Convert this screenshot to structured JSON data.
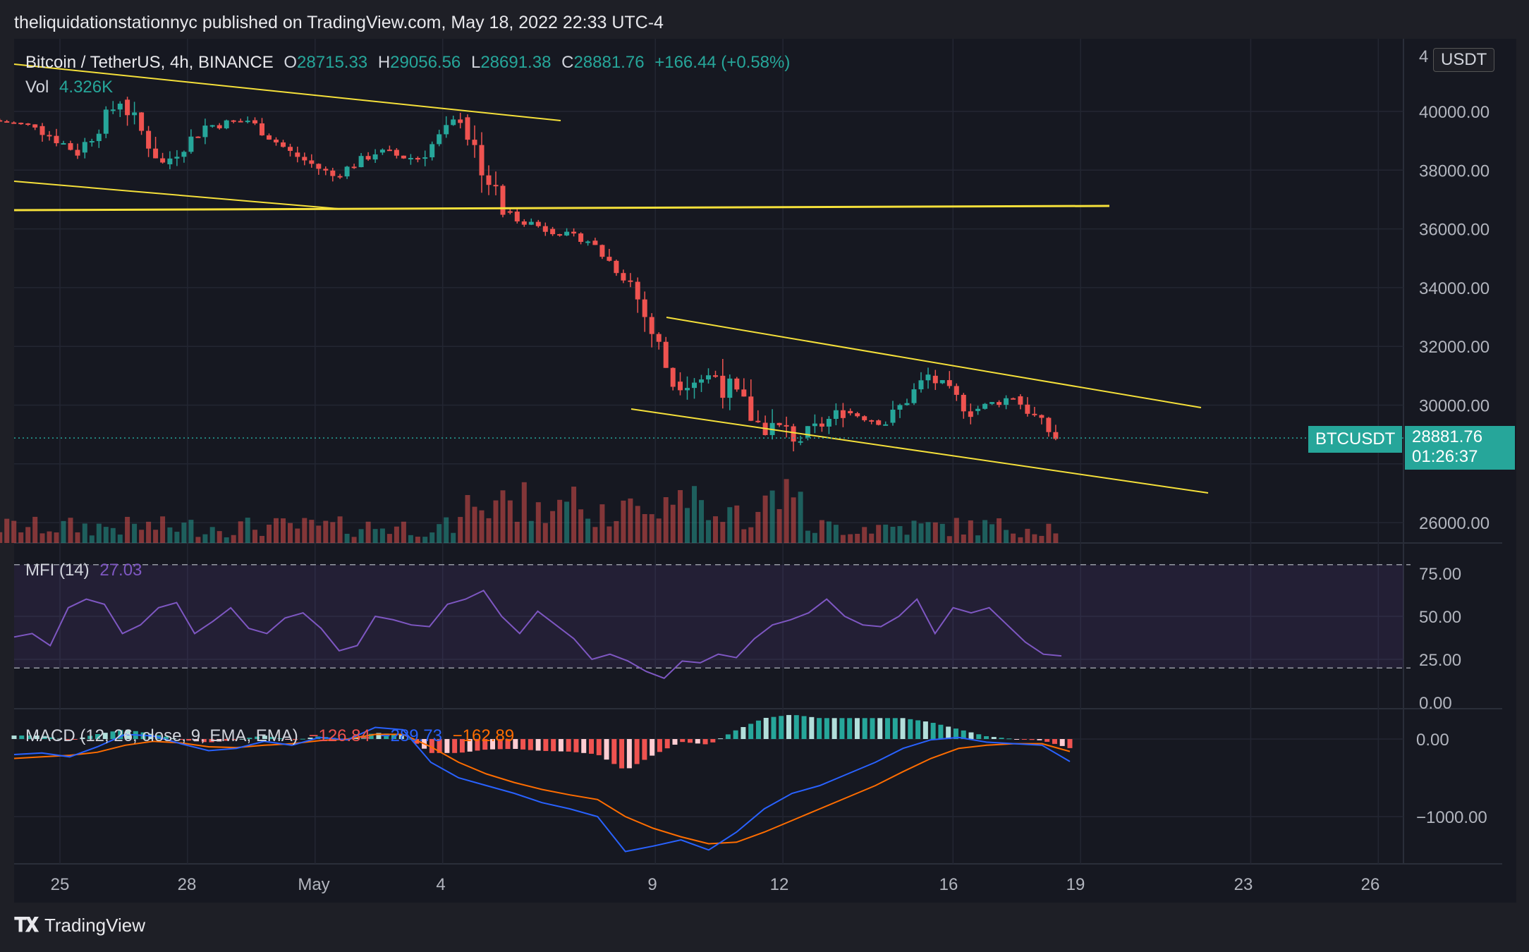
{
  "header": {
    "text": "theliquidationstationnyc published on TradingView.com, May 18, 2022 22:33 UTC-4"
  },
  "symbol": {
    "name": "Bitcoin / TetherUS, 4h, BINANCE",
    "o_label": "O",
    "o_value": "28715.33",
    "h_label": "H",
    "h_value": "29056.56",
    "l_label": "L",
    "l_value": "28691.38",
    "c_label": "C",
    "c_value": "28881.76",
    "change": "+166.44 (+0.58%)"
  },
  "volume": {
    "label": "Vol",
    "value": "4.326K"
  },
  "currency_badge": "USDT",
  "price_tag": {
    "symbol": "BTCUSDT",
    "price": "28881.76",
    "countdown": "01:26:37"
  },
  "mfi": {
    "label": "MFI (14)",
    "value": "27.03"
  },
  "macd": {
    "label": "MACD (12, 26, close, 9, EMA, EMA)",
    "hist": "−126.84",
    "macd": "−289.73",
    "signal": "−162.89"
  },
  "price_axis_labels": [
    "40000.00",
    "38000.00",
    "36000.00",
    "34000.00",
    "32000.00",
    "30000.00",
    "26000.00"
  ],
  "price_axis_partial_top": "4",
  "mfi_axis_labels": [
    "75.00",
    "50.00",
    "25.00",
    "0.00"
  ],
  "macd_axis_labels": [
    "0.00",
    "−1000.00"
  ],
  "time_axis_labels": [
    "25",
    "28",
    "May",
    "4",
    "9",
    "12",
    "16",
    "19",
    "23",
    "26"
  ],
  "footer": {
    "brand": "TradingView"
  },
  "colors": {
    "up": "#26a69a",
    "down": "#ef5350",
    "trendline": "#f5e03a",
    "mfi": "#7e57c2",
    "macd": "#2962ff",
    "signal": "#ff6d00"
  },
  "chart_data": {
    "type": "candlestick",
    "timeframe": "4h",
    "x_range": [
      "2022-04-23",
      "2022-05-27"
    ],
    "ylim": [
      25600,
      41600
    ],
    "candles_approx": [
      {
        "date": "Apr 24",
        "o": 39700,
        "h": 39900,
        "l": 39300,
        "c": 39500
      },
      {
        "date": "Apr 25",
        "o": 39500,
        "h": 39800,
        "l": 38200,
        "c": 38600
      },
      {
        "date": "Apr 26",
        "o": 38600,
        "h": 40700,
        "l": 38400,
        "c": 40400
      },
      {
        "date": "Apr 27",
        "o": 40400,
        "h": 40500,
        "l": 37700,
        "c": 38200
      },
      {
        "date": "Apr 28",
        "o": 38200,
        "h": 39900,
        "l": 38000,
        "c": 39500
      },
      {
        "date": "Apr 29",
        "o": 39500,
        "h": 40300,
        "l": 39000,
        "c": 39700
      },
      {
        "date": "Apr 30",
        "o": 39700,
        "h": 39800,
        "l": 38400,
        "c": 38600
      },
      {
        "date": "May 1",
        "o": 38600,
        "h": 38800,
        "l": 37400,
        "c": 37800
      },
      {
        "date": "May 2",
        "o": 37800,
        "h": 39000,
        "l": 37700,
        "c": 38600
      },
      {
        "date": "May 3",
        "o": 38600,
        "h": 39200,
        "l": 37600,
        "c": 38400
      },
      {
        "date": "May 4",
        "o": 38400,
        "h": 40000,
        "l": 37900,
        "c": 39800
      },
      {
        "date": "May 5",
        "o": 39800,
        "h": 39900,
        "l": 35800,
        "c": 36600
      },
      {
        "date": "May 6",
        "o": 36600,
        "h": 36700,
        "l": 35300,
        "c": 36000
      },
      {
        "date": "May 7",
        "o": 36000,
        "h": 36100,
        "l": 35200,
        "c": 35600
      },
      {
        "date": "May 8",
        "o": 35600,
        "h": 35700,
        "l": 33800,
        "c": 34200
      },
      {
        "date": "May 9",
        "o": 34200,
        "h": 34400,
        "l": 30500,
        "c": 30800
      },
      {
        "date": "May 10",
        "o": 30800,
        "h": 32600,
        "l": 29900,
        "c": 31000
      },
      {
        "date": "May 11",
        "o": 31000,
        "h": 32100,
        "l": 28200,
        "c": 29400
      },
      {
        "date": "May 12",
        "o": 29400,
        "h": 30000,
        "l": 26700,
        "c": 28900
      },
      {
        "date": "May 13",
        "o": 28900,
        "h": 30900,
        "l": 28800,
        "c": 29800
      },
      {
        "date": "May 14",
        "o": 29800,
        "h": 30100,
        "l": 28800,
        "c": 29400
      },
      {
        "date": "May 15",
        "o": 29400,
        "h": 31400,
        "l": 29300,
        "c": 31000
      },
      {
        "date": "May 16",
        "o": 31000,
        "h": 31200,
        "l": 29100,
        "c": 29800
      },
      {
        "date": "May 17",
        "o": 29800,
        "h": 30700,
        "l": 29400,
        "c": 30300
      },
      {
        "date": "May 18",
        "o": 30300,
        "h": 30500,
        "l": 28700,
        "c": 28882
      }
    ],
    "horizontal_level": 36700,
    "last_price": 28881.76,
    "mfi_ylim": [
      -5,
      85
    ],
    "mfi_bands": [
      20,
      80
    ],
    "macd_ylim": [
      -1700,
      350
    ]
  }
}
